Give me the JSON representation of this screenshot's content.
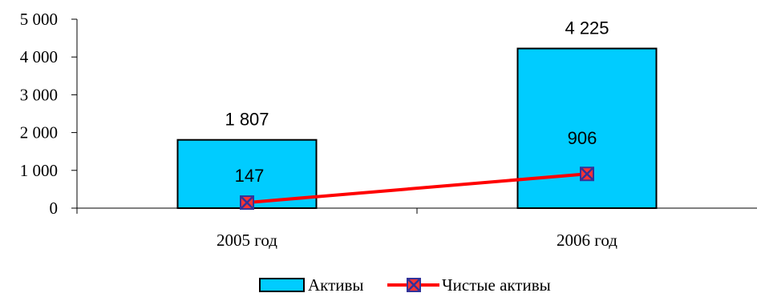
{
  "chart_data": {
    "type": "bar",
    "categories": [
      "2005 год",
      "2006 год"
    ],
    "ylim": [
      0,
      5000
    ],
    "y_ticks": [
      0,
      1000,
      2000,
      3000,
      4000,
      5000
    ],
    "y_tick_labels": [
      "0",
      "1 000",
      "2 000",
      "3 000",
      "4 000",
      "5 000"
    ],
    "series": [
      {
        "name": "Активы",
        "kind": "bar",
        "values": [
          1807,
          4225
        ],
        "value_labels": [
          "1 807",
          "4 225"
        ],
        "color": "#00CCFF",
        "edge_color": "#000000"
      },
      {
        "name": "Чистые активы",
        "kind": "line",
        "values": [
          147,
          906
        ],
        "value_labels": [
          "147",
          "906"
        ],
        "color": "#FF0000",
        "marker": "x-square",
        "marker_fill": "#FF3333",
        "marker_edge": "#333399"
      }
    ],
    "legend_position": "bottom",
    "grid": false
  }
}
